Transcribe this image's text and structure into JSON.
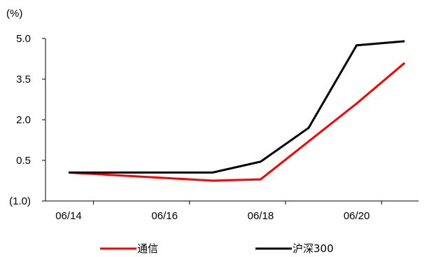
{
  "chart_data": {
    "type": "line",
    "y_unit_label": "(%)",
    "x": [
      "06/14",
      "06/15",
      "06/16",
      "06/17",
      "06/18",
      "06/19",
      "06/20",
      "06/21"
    ],
    "x_tick_labels": [
      "06/14",
      "06/16",
      "06/18",
      "06/20"
    ],
    "y_ticks": [
      5.0,
      3.5,
      2.0,
      0.5,
      -1.0
    ],
    "y_tick_labels": [
      "5.0",
      "3.5",
      "2.0",
      "0.5",
      "(1.0)"
    ],
    "ylim": [
      -1.0,
      5.0
    ],
    "grid": false,
    "legend_position": "bottom",
    "series": [
      {
        "name": "通信",
        "color": "#ff0000",
        "values": [
          0.05,
          -0.05,
          -0.15,
          -0.25,
          -0.2,
          1.2,
          2.6,
          4.1
        ]
      },
      {
        "name": "沪深300",
        "color": "#000000",
        "values": [
          0.05,
          0.05,
          0.05,
          0.05,
          0.45,
          1.7,
          4.75,
          4.9
        ]
      }
    ]
  }
}
